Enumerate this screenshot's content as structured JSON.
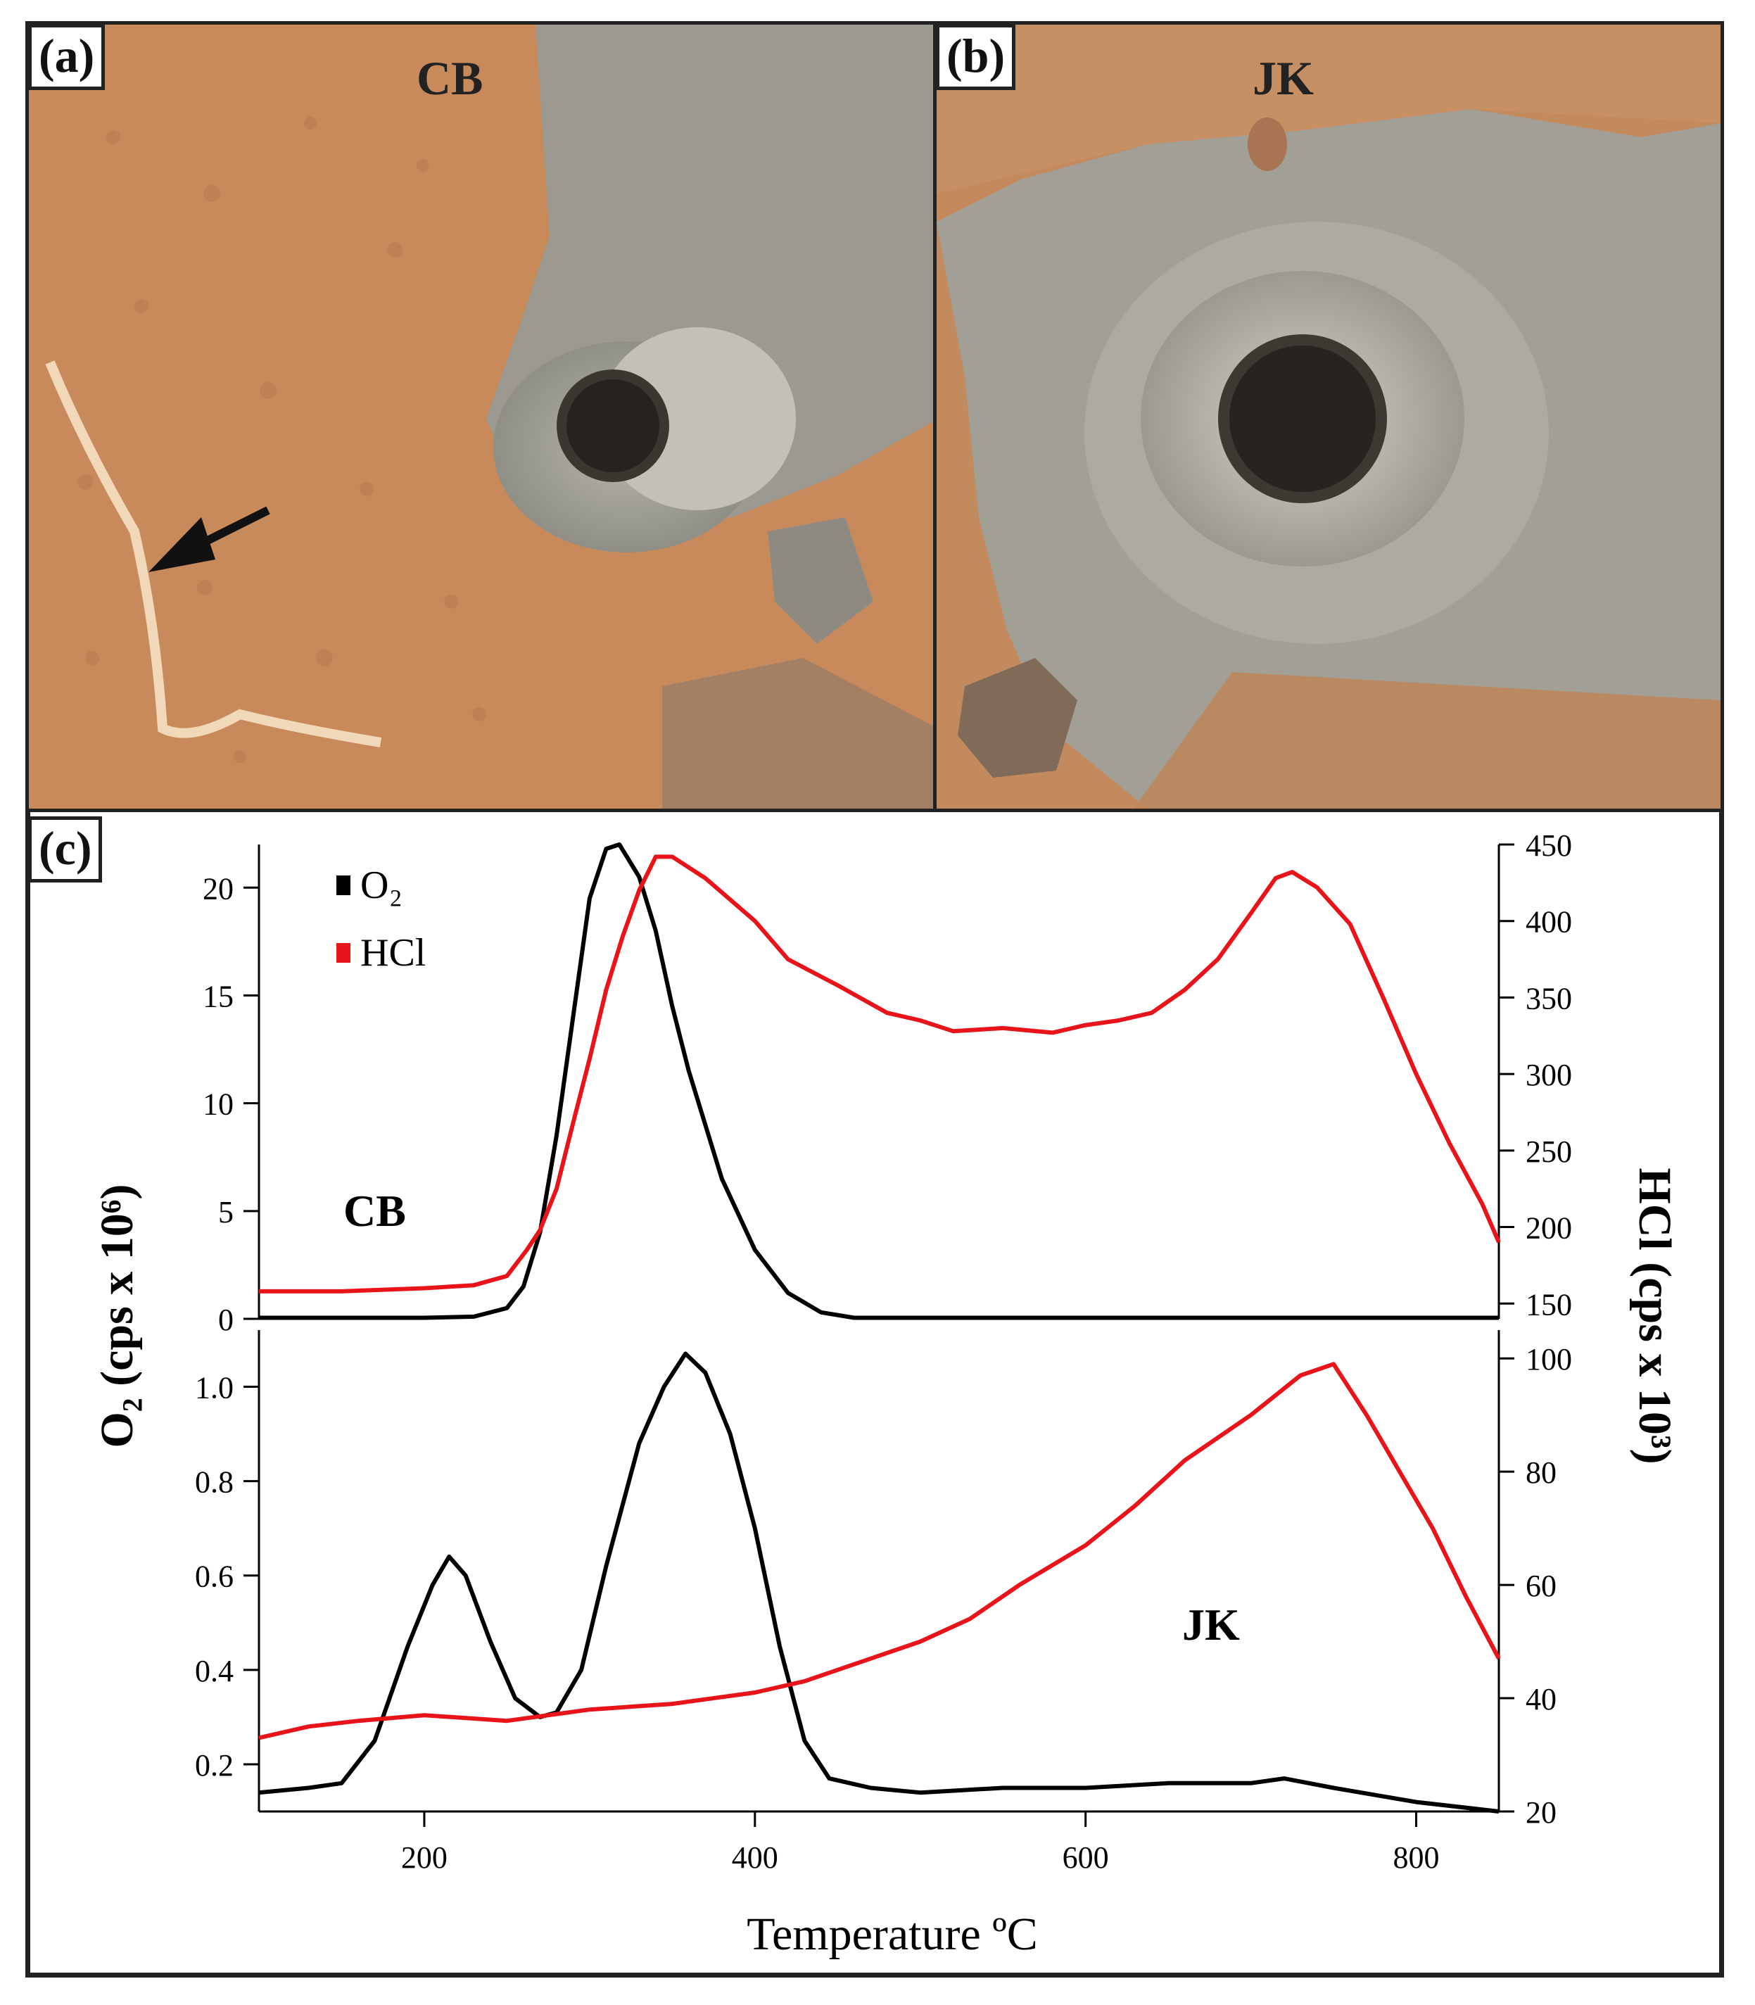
{
  "panels": {
    "a": {
      "label": "(a)",
      "sample": "CB"
    },
    "b": {
      "label": "(b)",
      "sample": "JK"
    },
    "c": {
      "label": "(c)"
    }
  },
  "colors": {
    "o2": "#000000",
    "hcl": "#e8141a",
    "rock": "#c98a5b",
    "tailings": "#9a9a93"
  },
  "chart_data": [
    {
      "type": "line",
      "panel": "top",
      "sample_label": "CB",
      "xlabel": "Temperature ºC",
      "left_axis": {
        "label": "O₂ (cps x 10⁶)",
        "ylim": [
          0,
          22
        ],
        "ticks": [
          0,
          5,
          10,
          15,
          20
        ]
      },
      "right_axis": {
        "label": "HCl (cps x 10³)",
        "ylim": [
          140,
          450
        ],
        "ticks": [
          150,
          200,
          250,
          300,
          350,
          400,
          450
        ]
      },
      "legend": [
        "O₂",
        "HCl"
      ],
      "legend_position": "top-left",
      "series": [
        {
          "name": "O₂",
          "axis": "left",
          "points": [
            [
              100,
              0.05
            ],
            [
              150,
              0.05
            ],
            [
              200,
              0.05
            ],
            [
              230,
              0.1
            ],
            [
              250,
              0.5
            ],
            [
              260,
              1.5
            ],
            [
              270,
              4.0
            ],
            [
              280,
              8.5
            ],
            [
              290,
              14.0
            ],
            [
              300,
              19.5
            ],
            [
              310,
              21.8
            ],
            [
              318,
              22.0
            ],
            [
              330,
              20.5
            ],
            [
              340,
              18.0
            ],
            [
              350,
              14.5
            ],
            [
              360,
              11.5
            ],
            [
              370,
              9.0
            ],
            [
              380,
              6.5
            ],
            [
              400,
              3.2
            ],
            [
              420,
              1.2
            ],
            [
              440,
              0.3
            ],
            [
              460,
              0.05
            ],
            [
              500,
              0.05
            ],
            [
              600,
              0.05
            ],
            [
              700,
              0.05
            ],
            [
              800,
              0.05
            ],
            [
              850,
              0.05
            ]
          ]
        },
        {
          "name": "HCl",
          "axis": "right",
          "points": [
            [
              100,
              158
            ],
            [
              150,
              158
            ],
            [
              200,
              160
            ],
            [
              230,
              162
            ],
            [
              250,
              168
            ],
            [
              262,
              185
            ],
            [
              270,
              198
            ],
            [
              280,
              225
            ],
            [
              290,
              268
            ],
            [
              300,
              310
            ],
            [
              310,
              355
            ],
            [
              320,
              390
            ],
            [
              330,
              420
            ],
            [
              340,
              442
            ],
            [
              350,
              442
            ],
            [
              370,
              428
            ],
            [
              400,
              400
            ],
            [
              420,
              375
            ],
            [
              450,
              358
            ],
            [
              480,
              340
            ],
            [
              500,
              335
            ],
            [
              520,
              328
            ],
            [
              550,
              330
            ],
            [
              580,
              327
            ],
            [
              600,
              332
            ],
            [
              620,
              335
            ],
            [
              640,
              340
            ],
            [
              660,
              355
            ],
            [
              680,
              375
            ],
            [
              700,
              405
            ],
            [
              715,
              428
            ],
            [
              725,
              432
            ],
            [
              740,
              422
            ],
            [
              760,
              398
            ],
            [
              780,
              350
            ],
            [
              800,
              300
            ],
            [
              820,
              255
            ],
            [
              840,
              215
            ],
            [
              850,
              190
            ]
          ]
        }
      ]
    },
    {
      "type": "line",
      "panel": "bottom",
      "sample_label": "JK",
      "xlabel": "Temperature ºC",
      "xlim": [
        100,
        850
      ],
      "xticks": [
        200,
        400,
        600,
        800
      ],
      "left_axis": {
        "label": "O₂ (cps x 10⁶)",
        "ylim": [
          0.1,
          1.12
        ],
        "ticks": [
          0.2,
          0.4,
          0.6,
          0.8,
          1.0
        ]
      },
      "right_axis": {
        "label": "HCl (cps x 10³)",
        "ylim": [
          20,
          105
        ],
        "ticks": [
          20,
          40,
          60,
          80,
          100
        ]
      },
      "series": [
        {
          "name": "O₂",
          "axis": "left",
          "points": [
            [
              100,
              0.14
            ],
            [
              130,
              0.15
            ],
            [
              150,
              0.16
            ],
            [
              170,
              0.25
            ],
            [
              190,
              0.45
            ],
            [
              205,
              0.58
            ],
            [
              215,
              0.64
            ],
            [
              225,
              0.6
            ],
            [
              240,
              0.46
            ],
            [
              255,
              0.34
            ],
            [
              270,
              0.3
            ],
            [
              280,
              0.31
            ],
            [
              295,
              0.4
            ],
            [
              310,
              0.62
            ],
            [
              330,
              0.88
            ],
            [
              345,
              1.0
            ],
            [
              358,
              1.07
            ],
            [
              370,
              1.03
            ],
            [
              385,
              0.9
            ],
            [
              400,
              0.7
            ],
            [
              415,
              0.45
            ],
            [
              430,
              0.25
            ],
            [
              445,
              0.17
            ],
            [
              470,
              0.15
            ],
            [
              500,
              0.14
            ],
            [
              550,
              0.15
            ],
            [
              600,
              0.15
            ],
            [
              650,
              0.16
            ],
            [
              700,
              0.16
            ],
            [
              720,
              0.17
            ],
            [
              750,
              0.15
            ],
            [
              800,
              0.12
            ],
            [
              850,
              0.1
            ]
          ]
        },
        {
          "name": "HCl",
          "axis": "right",
          "points": [
            [
              100,
              33
            ],
            [
              130,
              35
            ],
            [
              160,
              36
            ],
            [
              200,
              37
            ],
            [
              250,
              36
            ],
            [
              300,
              38
            ],
            [
              350,
              39
            ],
            [
              400,
              41
            ],
            [
              430,
              43
            ],
            [
              460,
              46
            ],
            [
              500,
              50
            ],
            [
              530,
              54
            ],
            [
              560,
              60
            ],
            [
              600,
              67
            ],
            [
              630,
              74
            ],
            [
              660,
              82
            ],
            [
              700,
              90
            ],
            [
              730,
              97
            ],
            [
              750,
              99
            ],
            [
              770,
              90
            ],
            [
              790,
              80
            ],
            [
              810,
              70
            ],
            [
              830,
              58
            ],
            [
              850,
              47
            ]
          ]
        }
      ]
    }
  ]
}
